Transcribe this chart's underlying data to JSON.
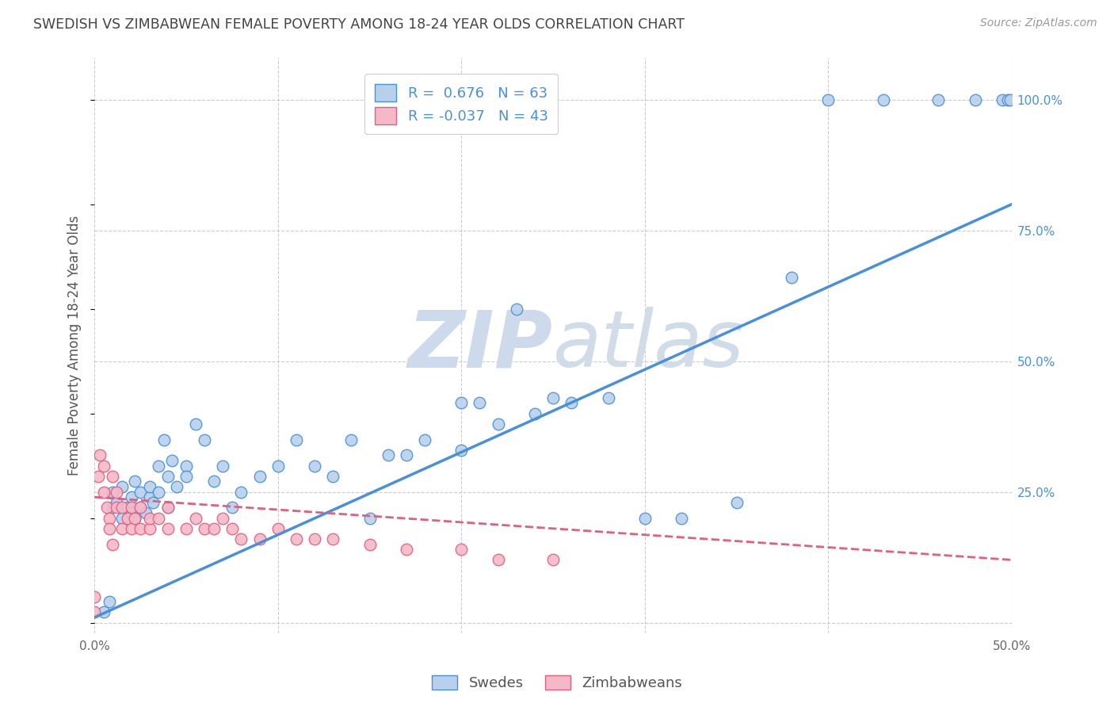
{
  "title": "SWEDISH VS ZIMBABWEAN FEMALE POVERTY AMONG 18-24 YEAR OLDS CORRELATION CHART",
  "source": "Source: ZipAtlas.com",
  "ylabel": "Female Poverty Among 18-24 Year Olds",
  "xlim": [
    0.0,
    0.5
  ],
  "ylim": [
    -0.02,
    1.08
  ],
  "xticks": [
    0.0,
    0.1,
    0.2,
    0.3,
    0.4,
    0.5
  ],
  "xtick_labels": [
    "0.0%",
    "",
    "",
    "",
    "",
    "50.0%"
  ],
  "ytick_labels_right": [
    "",
    "25.0%",
    "50.0%",
    "75.0%",
    "100.0%"
  ],
  "yticks_right": [
    0.0,
    0.25,
    0.5,
    0.75,
    1.0
  ],
  "R_blue": 0.676,
  "N_blue": 63,
  "R_pink": -0.037,
  "N_pink": 43,
  "blue_color": "#b8d0ec",
  "pink_color": "#f5b8c8",
  "line_blue": "#4a90d9",
  "line_pink": "#e06080",
  "watermark_top": "ZIP",
  "watermark_bottom": "atlas",
  "watermark_color": "#ccdaeb",
  "background_color": "#ffffff",
  "grid_color": "#cccccc",
  "title_color": "#444444",
  "blue_scatter_x": [
    0.005,
    0.008,
    0.01,
    0.01,
    0.012,
    0.015,
    0.015,
    0.018,
    0.02,
    0.02,
    0.022,
    0.022,
    0.025,
    0.025,
    0.028,
    0.03,
    0.03,
    0.032,
    0.035,
    0.035,
    0.038,
    0.04,
    0.04,
    0.042,
    0.045,
    0.05,
    0.05,
    0.055,
    0.06,
    0.065,
    0.07,
    0.075,
    0.08,
    0.09,
    0.1,
    0.11,
    0.12,
    0.13,
    0.14,
    0.15,
    0.16,
    0.17,
    0.18,
    0.2,
    0.2,
    0.21,
    0.22,
    0.23,
    0.24,
    0.25,
    0.26,
    0.28,
    0.3,
    0.32,
    0.35,
    0.38,
    0.4,
    0.43,
    0.46,
    0.48,
    0.495,
    0.498,
    0.499
  ],
  "blue_scatter_y": [
    0.02,
    0.04,
    0.22,
    0.25,
    0.23,
    0.2,
    0.26,
    0.22,
    0.21,
    0.24,
    0.2,
    0.27,
    0.22,
    0.25,
    0.21,
    0.24,
    0.26,
    0.23,
    0.3,
    0.25,
    0.35,
    0.28,
    0.22,
    0.31,
    0.26,
    0.3,
    0.28,
    0.38,
    0.35,
    0.27,
    0.3,
    0.22,
    0.25,
    0.28,
    0.3,
    0.35,
    0.3,
    0.28,
    0.35,
    0.2,
    0.32,
    0.32,
    0.35,
    0.42,
    0.33,
    0.42,
    0.38,
    0.6,
    0.4,
    0.43,
    0.42,
    0.43,
    0.2,
    0.2,
    0.23,
    0.66,
    1.0,
    1.0,
    1.0,
    1.0,
    1.0,
    1.0,
    1.0
  ],
  "pink_scatter_x": [
    0.0,
    0.0,
    0.002,
    0.003,
    0.005,
    0.005,
    0.007,
    0.008,
    0.008,
    0.01,
    0.01,
    0.012,
    0.012,
    0.015,
    0.015,
    0.018,
    0.02,
    0.02,
    0.022,
    0.025,
    0.025,
    0.03,
    0.03,
    0.035,
    0.04,
    0.04,
    0.05,
    0.055,
    0.06,
    0.065,
    0.07,
    0.075,
    0.08,
    0.09,
    0.1,
    0.11,
    0.12,
    0.13,
    0.15,
    0.17,
    0.2,
    0.22,
    0.25
  ],
  "pink_scatter_y": [
    0.02,
    0.05,
    0.28,
    0.32,
    0.3,
    0.25,
    0.22,
    0.2,
    0.18,
    0.28,
    0.15,
    0.25,
    0.22,
    0.22,
    0.18,
    0.2,
    0.22,
    0.18,
    0.2,
    0.22,
    0.18,
    0.18,
    0.2,
    0.2,
    0.18,
    0.22,
    0.18,
    0.2,
    0.18,
    0.18,
    0.2,
    0.18,
    0.16,
    0.16,
    0.18,
    0.16,
    0.16,
    0.16,
    0.15,
    0.14,
    0.14,
    0.12,
    0.12
  ],
  "blue_line_x": [
    0.0,
    0.5
  ],
  "blue_line_y": [
    0.01,
    0.8
  ],
  "pink_line_x": [
    0.0,
    0.5
  ],
  "pink_line_y": [
    0.24,
    0.12
  ]
}
